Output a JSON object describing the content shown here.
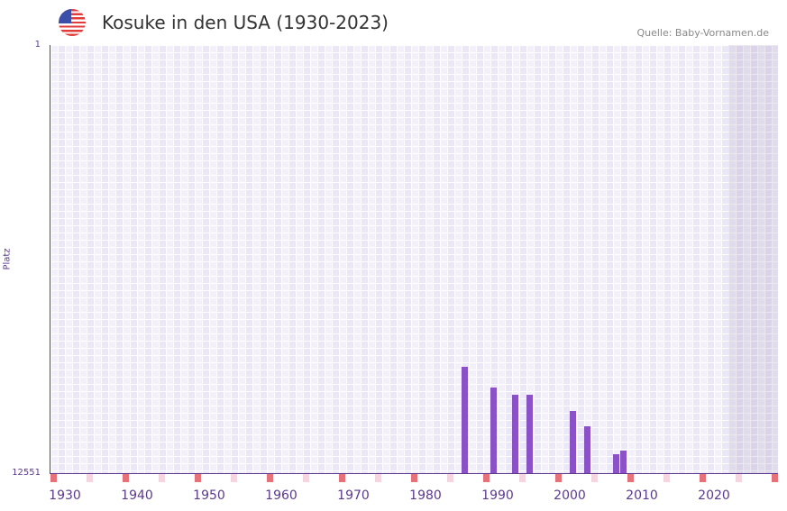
{
  "header": {
    "title": "Kosuke in den USA (1930-2023)",
    "source": "Quelle: Baby-Vornamen.de",
    "flag_icon": "us-flag-icon"
  },
  "chart_data": {
    "type": "bar",
    "title": "Kosuke in den USA (1930-2023)",
    "ylabel": "Platz",
    "ylim": [
      12551,
      1
    ],
    "y_ticks": [
      "1",
      "12551"
    ],
    "x_ticks": [
      "1930",
      "1940",
      "1950",
      "1960",
      "1970",
      "1980",
      "1990",
      "2000",
      "2010",
      "2020"
    ],
    "x": [
      1985,
      1989,
      1992,
      1994,
      2000,
      2002,
      2006,
      2007
    ],
    "values": [
      9430,
      10040,
      10250,
      10250,
      10730,
      11180,
      11990,
      11890
    ],
    "bar_color": "#8b52c8",
    "grid": true
  }
}
